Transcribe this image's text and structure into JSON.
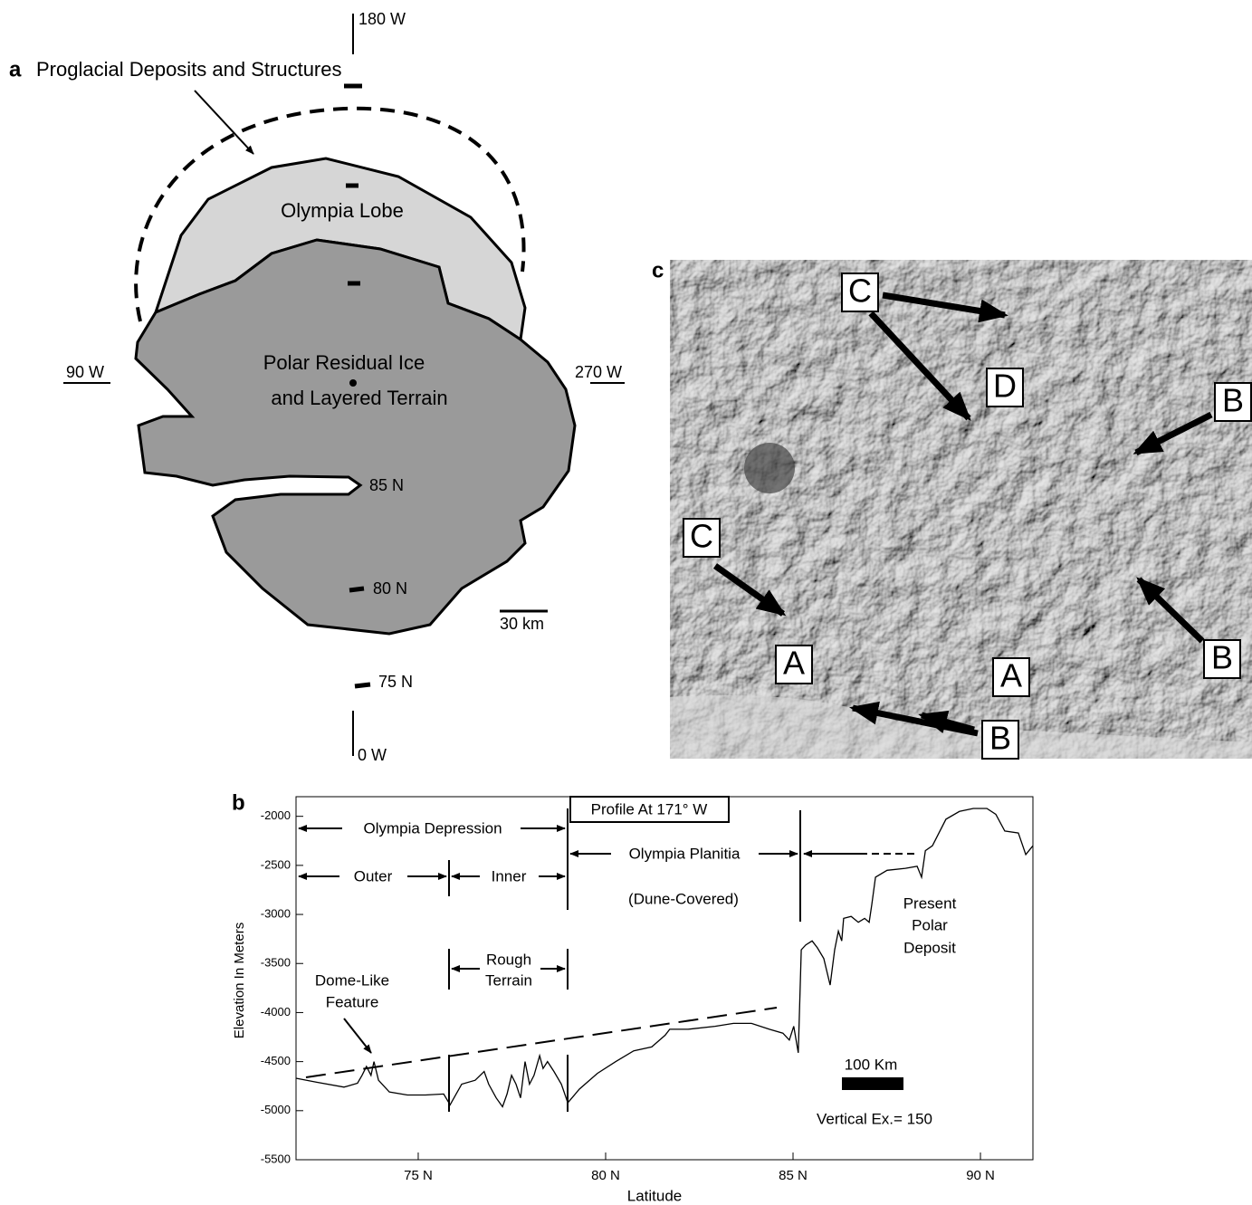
{
  "panel_a": {
    "label": "a",
    "title": "Proglacial Deposits and Structures",
    "longitudes": [
      "180 W",
      "90 W",
      "270 W",
      "0 W"
    ],
    "regions": [
      "Olympia Lobe",
      "Polar Residual Ice",
      "and Layered Terrain"
    ],
    "latitudes": [
      "85 N",
      "80 N",
      "75 N"
    ],
    "scale": "30 km"
  },
  "panel_c": {
    "label": "c",
    "markers": [
      "C",
      "D",
      "B",
      "C",
      "A",
      "A",
      "B",
      "B"
    ]
  },
  "chart_data": {
    "type": "line",
    "label": "b",
    "title": "Profile At 171° W",
    "x_label": "Latitude",
    "y_label": "Elevation In Meters",
    "x": [
      71.74,
      72.29,
      73.02,
      73.38,
      73.5,
      73.62,
      73.74,
      73.82,
      73.94,
      74.23,
      74.71,
      75.19,
      75.68,
      75.85,
      76.16,
      76.52,
      76.76,
      76.88,
      77.08,
      77.25,
      77.37,
      77.49,
      77.61,
      77.73,
      77.85,
      77.97,
      78.09,
      78.24,
      78.33,
      78.45,
      78.62,
      78.82,
      78.99,
      79.3,
      79.78,
      80.27,
      80.75,
      81.23,
      81.59,
      81.71,
      82.2,
      82.92,
      83.41,
      83.89,
      84.37,
      84.73,
      84.9,
      85.02,
      85.14,
      85.22,
      85.34,
      85.51,
      85.65,
      85.82,
      85.99,
      86.11,
      86.21,
      86.3,
      86.35,
      86.55,
      86.74,
      86.91,
      87.03,
      87.1,
      87.2,
      87.51,
      88.0,
      88.31,
      88.43,
      88.53,
      88.72,
      89.08,
      89.44,
      89.81,
      90.17,
      90.41,
      90.65,
      91.01,
      91.21,
      91.4
    ],
    "series": [
      {
        "color": "#000000",
        "values": [
          -4670,
          -4710,
          -4760,
          -4720,
          -4640,
          -4550,
          -4640,
          -4500,
          -4690,
          -4810,
          -4840,
          -4840,
          -4830,
          -4940,
          -4730,
          -4690,
          -4600,
          -4730,
          -4870,
          -4960,
          -4830,
          -4640,
          -4730,
          -4870,
          -4500,
          -4730,
          -4640,
          -4440,
          -4570,
          -4500,
          -4600,
          -4730,
          -4920,
          -4780,
          -4620,
          -4500,
          -4390,
          -4350,
          -4230,
          -4170,
          -4170,
          -4140,
          -4110,
          -4110,
          -4170,
          -4210,
          -4280,
          -4140,
          -4410,
          -3360,
          -3310,
          -3270,
          -3340,
          -3450,
          -3720,
          -3360,
          -3170,
          -3270,
          -3040,
          -3020,
          -3080,
          -3040,
          -3080,
          -2900,
          -2620,
          -2550,
          -2530,
          -2510,
          -2620,
          -2350,
          -2300,
          -2030,
          -1950,
          -1920,
          -1920,
          -1980,
          -2150,
          -2170,
          -2390,
          -2300
        ]
      }
    ],
    "xlim": [
      71.74,
      91.4
    ],
    "ylim": [
      -5500,
      -1800
    ],
    "xticks": [
      {
        "value": 75,
        "label": "75 N"
      },
      {
        "value": 80,
        "label": "80 N"
      },
      {
        "value": 85,
        "label": "85 N"
      },
      {
        "value": 90,
        "label": "90 N"
      }
    ],
    "yticks": [
      -2000,
      -2500,
      -3000,
      -3500,
      -4000,
      -4500,
      -5000,
      -5500
    ],
    "annotations": [
      "Olympia Depression",
      "Outer",
      "Inner",
      "Olympia Planitia",
      "(Dune-Covered)",
      "Rough",
      "Terrain",
      "Dome-Like",
      "Feature",
      "Present",
      "Polar",
      "Deposit",
      "100 Km",
      "Vertical Ex.= 150"
    ]
  }
}
